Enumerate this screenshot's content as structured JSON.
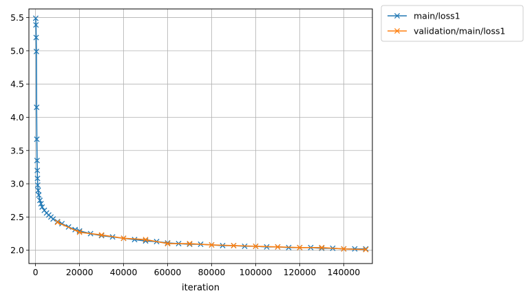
{
  "chart_data": {
    "type": "line",
    "title": "",
    "xlabel": "iteration",
    "ylabel": "",
    "xlim": [
      -3000,
      153000
    ],
    "ylim": [
      1.8,
      5.63
    ],
    "grid": true,
    "legend_placement": "outside-top-right",
    "x_ticks": [
      0,
      20000,
      40000,
      60000,
      80000,
      100000,
      120000,
      140000
    ],
    "x_tick_labels": [
      "0",
      "20000",
      "40000",
      "60000",
      "80000",
      "100000",
      "120000",
      "140000"
    ],
    "y_ticks": [
      2.0,
      2.5,
      3.0,
      3.5,
      4.0,
      4.5,
      5.0,
      5.5
    ],
    "y_tick_labels": [
      "2.0",
      "2.5",
      "3.0",
      "3.5",
      "4.0",
      "4.5",
      "5.0",
      "5.5"
    ],
    "series": [
      {
        "name": "main/loss1",
        "color": "#1f77b4",
        "marker": "x",
        "x": [
          100,
          200,
          300,
          400,
          500,
          600,
          700,
          800,
          900,
          1000,
          1200,
          1500,
          2000,
          2500,
          3000,
          4000,
          5000,
          6000,
          7000,
          8000,
          10000,
          12000,
          15000,
          18000,
          20000,
          25000,
          30000,
          35000,
          40000,
          45000,
          50000,
          55000,
          60000,
          65000,
          70000,
          75000,
          80000,
          85000,
          90000,
          95000,
          100000,
          105000,
          110000,
          115000,
          120000,
          125000,
          130000,
          135000,
          140000,
          145000,
          150000
        ],
        "y": [
          5.49,
          5.39,
          5.2,
          4.99,
          4.15,
          3.67,
          3.35,
          3.2,
          3.08,
          2.98,
          2.9,
          2.83,
          2.75,
          2.7,
          2.65,
          2.6,
          2.56,
          2.53,
          2.5,
          2.47,
          2.43,
          2.4,
          2.35,
          2.31,
          2.29,
          2.25,
          2.22,
          2.2,
          2.18,
          2.16,
          2.14,
          2.13,
          2.11,
          2.1,
          2.09,
          2.09,
          2.08,
          2.07,
          2.07,
          2.06,
          2.06,
          2.05,
          2.05,
          2.04,
          2.04,
          2.04,
          2.03,
          2.03,
          2.02,
          2.02,
          2.02
        ]
      },
      {
        "name": "validation/main/loss1",
        "color": "#ff7f0e",
        "marker": "x",
        "x": [
          10000,
          20000,
          30000,
          40000,
          50000,
          60000,
          70000,
          80000,
          90000,
          100000,
          110000,
          120000,
          130000,
          140000,
          150000
        ],
        "y": [
          2.42,
          2.27,
          2.23,
          2.18,
          2.16,
          2.1,
          2.1,
          2.08,
          2.07,
          2.06,
          2.05,
          2.04,
          2.04,
          2.02,
          2.01
        ]
      }
    ]
  }
}
